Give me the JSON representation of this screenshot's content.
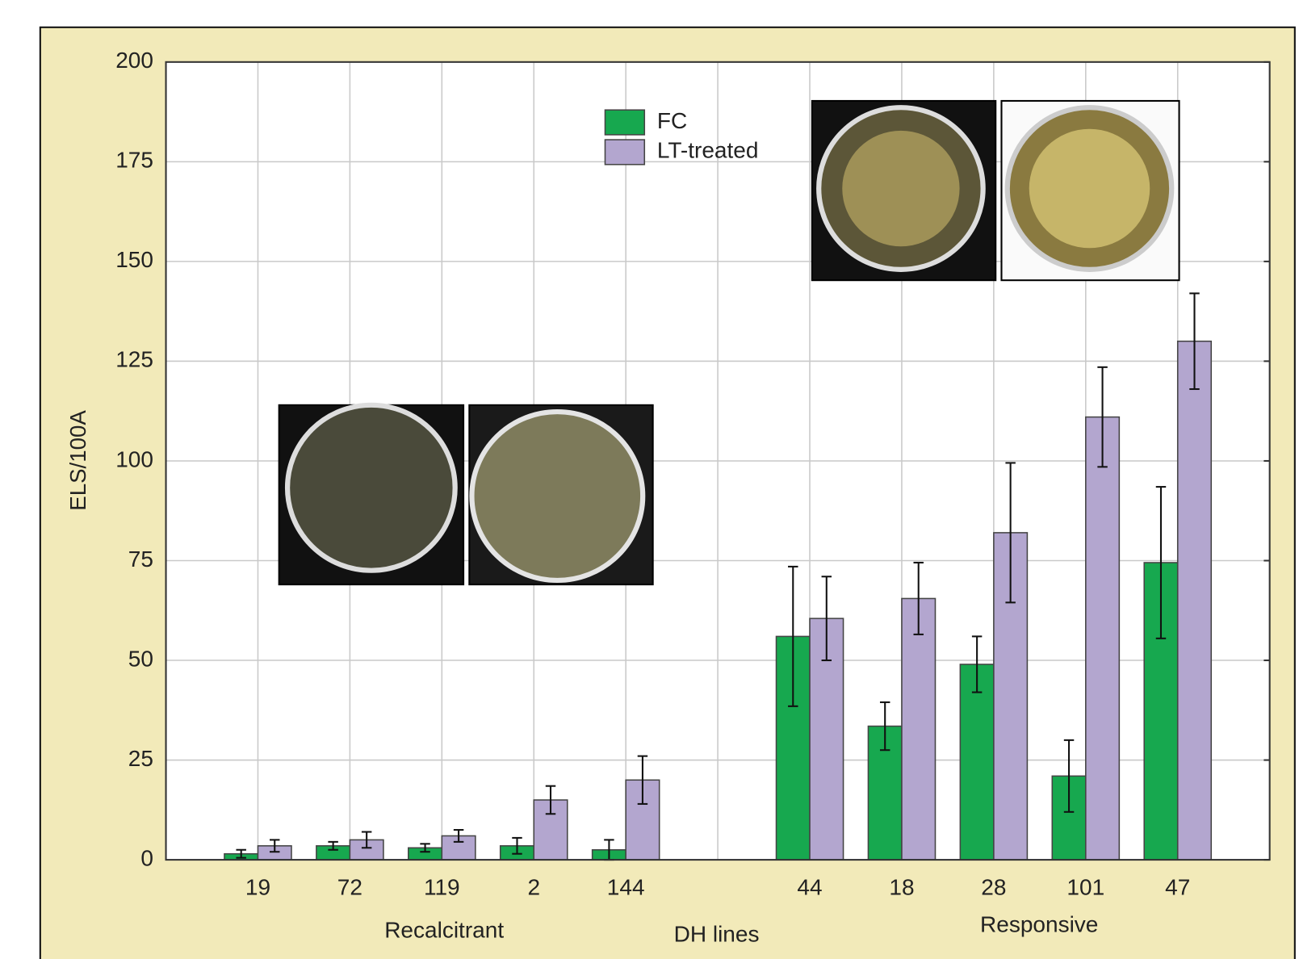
{
  "chart_data": {
    "type": "bar",
    "x_label": "DH lines",
    "y_label": "ELS/100A",
    "group_labels": [
      "Recalcitrant",
      "Responsive"
    ],
    "categories": [
      "19",
      "72",
      "119",
      "2",
      "144",
      null,
      "44",
      "18",
      "28",
      "101",
      "47"
    ],
    "series": [
      {
        "name": "FC",
        "color": "#17a84f",
        "values": [
          1.5,
          3.5,
          3,
          3.5,
          2.5,
          null,
          56,
          33.5,
          49,
          21,
          74.5
        ],
        "errors": [
          1,
          1,
          1,
          2,
          2.5,
          null,
          17.5,
          6,
          7,
          9,
          19
        ]
      },
      {
        "name": "LT-treated",
        "color": "#b3a6cf",
        "values": [
          3.5,
          5,
          6,
          15,
          20,
          null,
          60.5,
          65.5,
          82,
          111,
          130
        ],
        "errors": [
          1.5,
          2,
          1.5,
          3.5,
          6,
          null,
          10.5,
          9,
          17.5,
          12.5,
          12
        ]
      }
    ],
    "ylim": [
      0,
      200
    ],
    "yticks": [
      0,
      25,
      50,
      75,
      100,
      125,
      150,
      175,
      200
    ],
    "grid": true
  }
}
